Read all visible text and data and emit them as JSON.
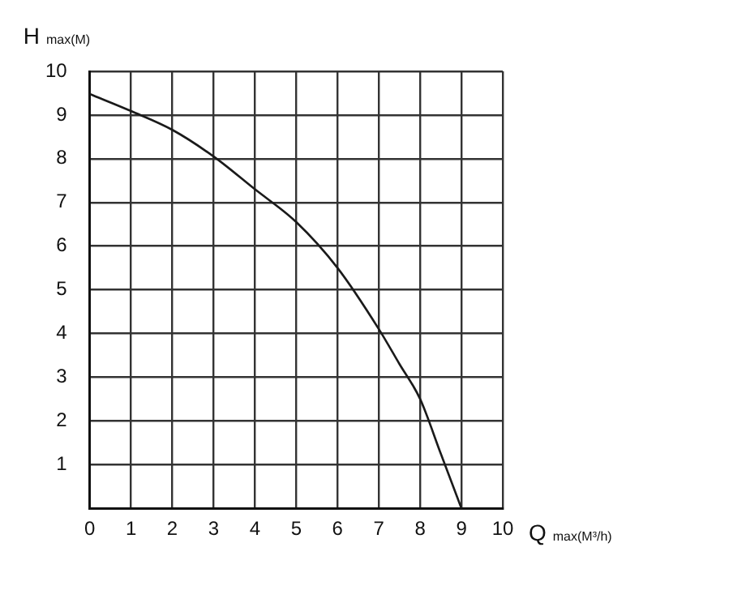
{
  "chart_data": {
    "type": "line",
    "xlabel": "Q$_{max(M³/h)}$",
    "ylabel": "H$_{max(M)}$",
    "x": [
      0,
      1,
      2,
      3,
      4,
      5,
      6,
      7,
      7.5,
      8,
      8.5,
      9
    ],
    "series": [
      {
        "color": "#1a1a1a",
        "values": [
          9.48,
          9.09,
          8.66,
          8.05,
          7.3,
          6.55,
          5.5,
          4.1,
          3.3,
          2.5,
          1.25,
          0
        ]
      }
    ],
    "xlim": [
      0,
      10
    ],
    "ylim": [
      0,
      10
    ],
    "xticks": [
      0,
      1,
      2,
      3,
      4,
      5,
      6,
      7,
      8,
      9,
      10
    ],
    "yticks": [
      1,
      2,
      3,
      4,
      5,
      6,
      7,
      8,
      9,
      10
    ],
    "grid": true,
    "legend": false,
    "marker": "none",
    "line_style": "solid"
  }
}
